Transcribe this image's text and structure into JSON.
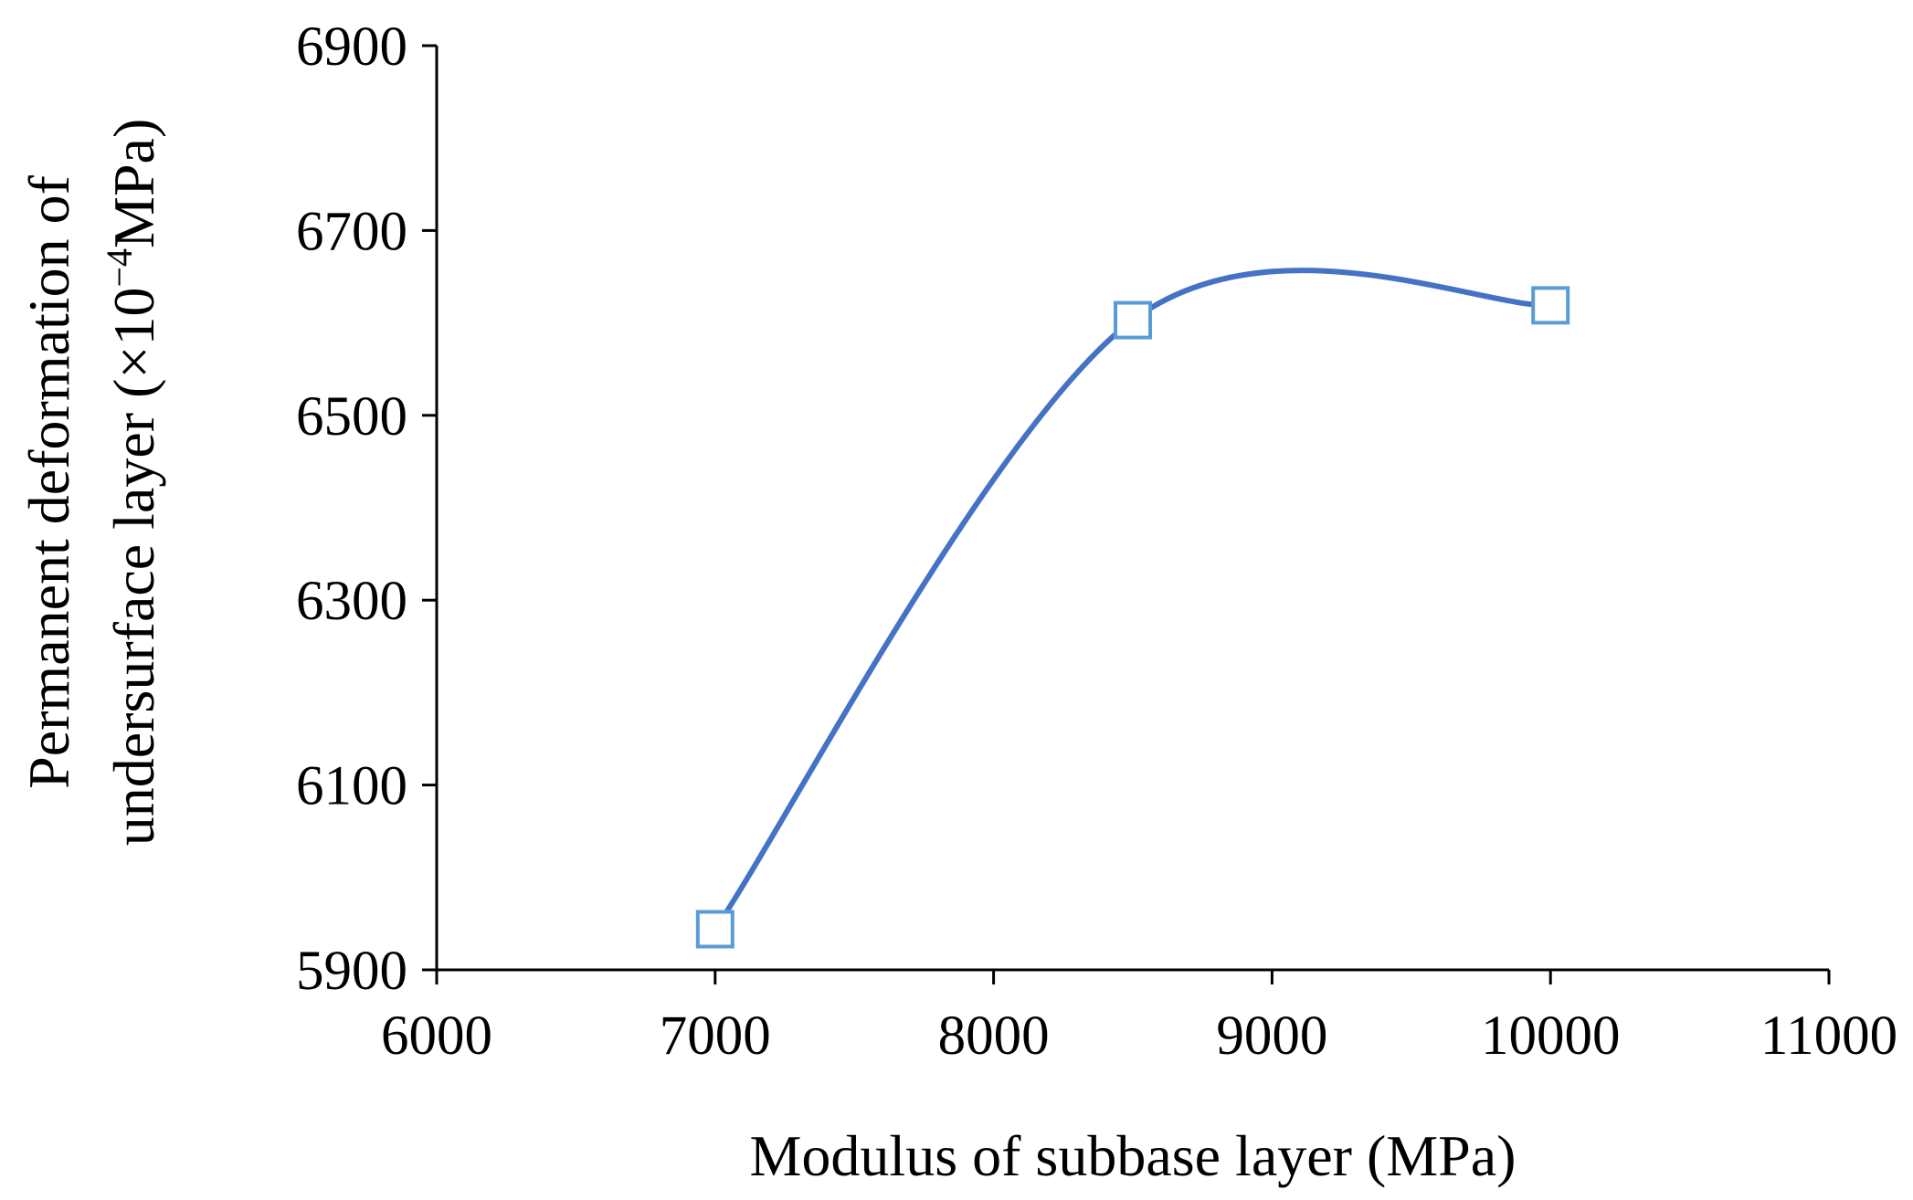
{
  "chart_data": {
    "type": "line",
    "smooth": true,
    "xlabel": "Modulus of subbase layer (MPa)",
    "ylabel_line1": "Permanent deformation of",
    "ylabel_line2_prefix": "undersurface layer (×10",
    "ylabel_line2_exp": "−4",
    "ylabel_line2_suffix": "MPa)",
    "xlim": [
      6000,
      11000
    ],
    "ylim": [
      5900,
      6900
    ],
    "xticks": [
      "6000",
      "7000",
      "8000",
      "9000",
      "10000",
      "11000"
    ],
    "yticks": [
      "5900",
      "6100",
      "6300",
      "6500",
      "6700",
      "6900"
    ],
    "grid": false,
    "legend": "none",
    "series": [
      {
        "x": [
          7000,
          8500,
          10000
        ],
        "y": [
          5944,
          6603,
          6619
        ],
        "color": "#4472C4",
        "marker": "open-square"
      }
    ]
  }
}
